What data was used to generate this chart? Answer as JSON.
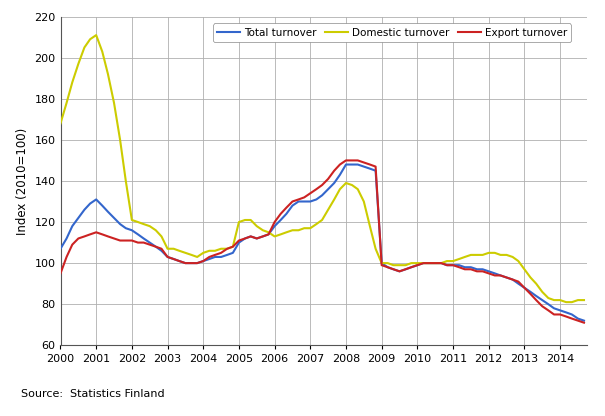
{
  "ylabel": "Index (2010=100)",
  "source": "Source:  Statistics Finland",
  "ylim": [
    60,
    220
  ],
  "xlim": [
    2000.0,
    2014.75
  ],
  "yticks": [
    60,
    80,
    100,
    120,
    140,
    160,
    180,
    200,
    220
  ],
  "xtick_positions": [
    2000,
    2001,
    2002,
    2003,
    2004,
    2005,
    2006,
    2007,
    2008,
    2009,
    2010,
    2011,
    2012,
    2013,
    2014
  ],
  "xtick_labels": [
    "2000",
    "2001",
    "2002",
    "2003",
    "2004",
    "2005",
    "2006",
    "2007",
    "2008",
    "2009",
    "2010",
    "2011",
    "2012",
    "2013",
    "2014"
  ],
  "total_color": "#3366CC",
  "domestic_color": "#CCCC00",
  "export_color": "#CC2222",
  "line_width": 1.5,
  "total_x": [
    2000.0,
    2000.17,
    2000.33,
    2000.5,
    2000.67,
    2000.83,
    2001.0,
    2001.17,
    2001.33,
    2001.5,
    2001.67,
    2001.83,
    2002.0,
    2002.17,
    2002.33,
    2002.5,
    2002.67,
    2002.83,
    2003.0,
    2003.17,
    2003.33,
    2003.5,
    2003.67,
    2003.83,
    2004.0,
    2004.17,
    2004.33,
    2004.5,
    2004.67,
    2004.83,
    2005.0,
    2005.17,
    2005.33,
    2005.5,
    2005.67,
    2005.83,
    2006.0,
    2006.17,
    2006.33,
    2006.5,
    2006.67,
    2006.83,
    2007.0,
    2007.17,
    2007.33,
    2007.5,
    2007.67,
    2007.83,
    2008.0,
    2008.17,
    2008.33,
    2008.5,
    2008.67,
    2008.83,
    2009.0,
    2009.17,
    2009.33,
    2009.5,
    2009.67,
    2009.83,
    2010.0,
    2010.17,
    2010.33,
    2010.5,
    2010.67,
    2010.83,
    2011.0,
    2011.17,
    2011.33,
    2011.5,
    2011.67,
    2011.83,
    2012.0,
    2012.17,
    2012.33,
    2012.5,
    2012.67,
    2012.83,
    2013.0,
    2013.17,
    2013.33,
    2013.5,
    2013.67,
    2013.83,
    2014.0,
    2014.17,
    2014.33,
    2014.5,
    2014.67
  ],
  "total_y": [
    107,
    112,
    118,
    122,
    126,
    129,
    131,
    128,
    125,
    122,
    119,
    117,
    116,
    114,
    112,
    110,
    108,
    106,
    103,
    102,
    101,
    100,
    100,
    100,
    101,
    102,
    103,
    103,
    104,
    105,
    110,
    112,
    113,
    112,
    113,
    114,
    118,
    121,
    124,
    128,
    130,
    130,
    130,
    131,
    133,
    136,
    139,
    143,
    148,
    148,
    148,
    147,
    146,
    145,
    100,
    98,
    97,
    96,
    97,
    98,
    99,
    100,
    100,
    100,
    100,
    99,
    99,
    99,
    98,
    98,
    97,
    97,
    96,
    95,
    94,
    93,
    92,
    90,
    88,
    86,
    84,
    82,
    80,
    78,
    77,
    76,
    75,
    73,
    72
  ],
  "domestic_x": [
    2000.0,
    2000.17,
    2000.33,
    2000.5,
    2000.67,
    2000.83,
    2001.0,
    2001.17,
    2001.33,
    2001.5,
    2001.67,
    2001.83,
    2002.0,
    2002.17,
    2002.33,
    2002.5,
    2002.67,
    2002.83,
    2003.0,
    2003.17,
    2003.33,
    2003.5,
    2003.67,
    2003.83,
    2004.0,
    2004.17,
    2004.33,
    2004.5,
    2004.67,
    2004.83,
    2005.0,
    2005.17,
    2005.33,
    2005.5,
    2005.67,
    2005.83,
    2006.0,
    2006.17,
    2006.33,
    2006.5,
    2006.67,
    2006.83,
    2007.0,
    2007.17,
    2007.33,
    2007.5,
    2007.67,
    2007.83,
    2008.0,
    2008.17,
    2008.33,
    2008.5,
    2008.67,
    2008.83,
    2009.0,
    2009.17,
    2009.33,
    2009.5,
    2009.67,
    2009.83,
    2010.0,
    2010.17,
    2010.33,
    2010.5,
    2010.67,
    2010.83,
    2011.0,
    2011.17,
    2011.33,
    2011.5,
    2011.67,
    2011.83,
    2012.0,
    2012.17,
    2012.33,
    2012.5,
    2012.67,
    2012.83,
    2013.0,
    2013.17,
    2013.33,
    2013.5,
    2013.67,
    2013.83,
    2014.0,
    2014.17,
    2014.33,
    2014.5,
    2014.67
  ],
  "domestic_y": [
    168,
    178,
    188,
    197,
    205,
    209,
    211,
    203,
    192,
    178,
    160,
    140,
    121,
    120,
    119,
    118,
    116,
    113,
    107,
    107,
    106,
    105,
    104,
    103,
    105,
    106,
    106,
    107,
    107,
    108,
    120,
    121,
    121,
    118,
    116,
    115,
    113,
    114,
    115,
    116,
    116,
    117,
    117,
    119,
    121,
    126,
    131,
    136,
    139,
    138,
    136,
    130,
    118,
    107,
    100,
    100,
    99,
    99,
    99,
    100,
    100,
    100,
    100,
    100,
    100,
    101,
    101,
    102,
    103,
    104,
    104,
    104,
    105,
    105,
    104,
    104,
    103,
    101,
    97,
    93,
    90,
    86,
    83,
    82,
    82,
    81,
    81,
    82,
    82
  ],
  "export_x": [
    2000.0,
    2000.17,
    2000.33,
    2000.5,
    2000.67,
    2000.83,
    2001.0,
    2001.17,
    2001.33,
    2001.5,
    2001.67,
    2001.83,
    2002.0,
    2002.17,
    2002.33,
    2002.5,
    2002.67,
    2002.83,
    2003.0,
    2003.17,
    2003.33,
    2003.5,
    2003.67,
    2003.83,
    2004.0,
    2004.17,
    2004.33,
    2004.5,
    2004.67,
    2004.83,
    2005.0,
    2005.17,
    2005.33,
    2005.5,
    2005.67,
    2005.83,
    2006.0,
    2006.17,
    2006.33,
    2006.5,
    2006.67,
    2006.83,
    2007.0,
    2007.17,
    2007.33,
    2007.5,
    2007.67,
    2007.83,
    2008.0,
    2008.17,
    2008.33,
    2008.5,
    2008.67,
    2008.83,
    2009.0,
    2009.17,
    2009.33,
    2009.5,
    2009.67,
    2009.83,
    2010.0,
    2010.17,
    2010.33,
    2010.5,
    2010.67,
    2010.83,
    2011.0,
    2011.17,
    2011.33,
    2011.5,
    2011.67,
    2011.83,
    2012.0,
    2012.17,
    2012.33,
    2012.5,
    2012.67,
    2012.83,
    2013.0,
    2013.17,
    2013.33,
    2013.5,
    2013.67,
    2013.83,
    2014.0,
    2014.17,
    2014.33,
    2014.5,
    2014.67
  ],
  "export_y": [
    95,
    103,
    109,
    112,
    113,
    114,
    115,
    114,
    113,
    112,
    111,
    111,
    111,
    110,
    110,
    109,
    108,
    107,
    103,
    102,
    101,
    100,
    100,
    100,
    101,
    103,
    104,
    105,
    107,
    108,
    111,
    112,
    113,
    112,
    113,
    114,
    120,
    124,
    127,
    130,
    131,
    132,
    134,
    136,
    138,
    141,
    145,
    148,
    150,
    150,
    150,
    149,
    148,
    147,
    99,
    98,
    97,
    96,
    97,
    98,
    99,
    100,
    100,
    100,
    100,
    99,
    99,
    98,
    97,
    97,
    96,
    96,
    95,
    94,
    94,
    93,
    92,
    91,
    88,
    85,
    82,
    79,
    77,
    75,
    75,
    74,
    73,
    72,
    71
  ]
}
